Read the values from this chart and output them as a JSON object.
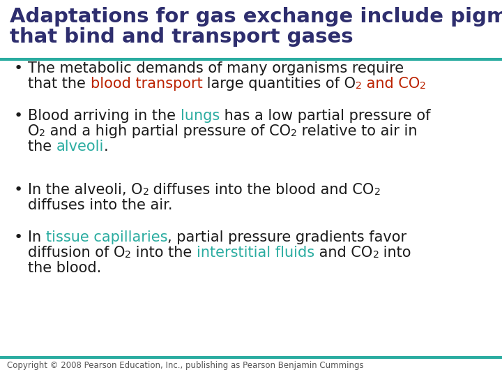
{
  "title_line1": "Adaptations for gas exchange include pigments",
  "title_line2": "that bind and transport gases",
  "title_color": "#2E2E6E",
  "title_fontsize": 21,
  "divider_color": "#2AACA0",
  "bg_color": "#FFFFFF",
  "body_fontsize": 15.0,
  "body_color": "#1a1a1a",
  "highlight_red": "#BB2200",
  "highlight_teal": "#2AACA0",
  "copyright": "Copyright © 2008 Pearson Education, Inc., publishing as Pearson Benjamin Cummings",
  "copyright_fontsize": 8.5
}
